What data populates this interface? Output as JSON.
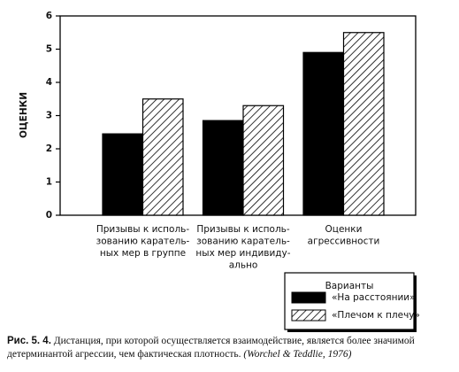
{
  "chart_data": {
    "type": "bar",
    "y_label": "ОЦЕНКИ",
    "categories": [
      "Призывы к исполь-\nзованию каратель-\nных мер в группе",
      "Призывы к исполь-\nзованию каратель-\nных мер индивиду-\nально",
      "Оценки\nагрессивности"
    ],
    "series": [
      {
        "name": "«На расстоянии»",
        "color": "#000000",
        "values": [
          2.45,
          2.85,
          4.9
        ]
      },
      {
        "name": "«Плечом к плечу»",
        "color": "#ffffff",
        "pattern": "diagonal",
        "values": [
          3.5,
          3.3,
          5.5
        ]
      }
    ],
    "legend_title": "Варианты",
    "legend": "lower right",
    "ylim": [
      0,
      6
    ],
    "yticks": [
      0,
      1,
      2,
      3,
      4,
      5,
      6
    ],
    "grid": false
  },
  "caption": {
    "label": "Рис. 5. 4.",
    "text": " Дистанция, при которой осуществляется взаимодействие, является более значимой детерминантой агрессии, чем фактическая плотность.",
    "source": "(Worchel & Teddlie, 1976)"
  }
}
